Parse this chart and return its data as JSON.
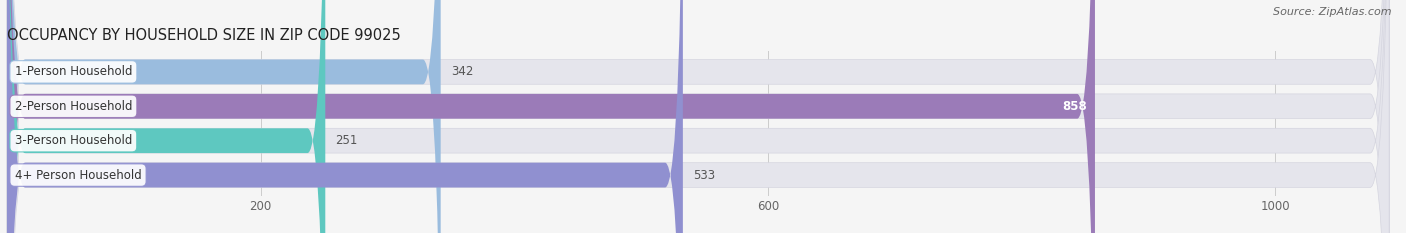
{
  "title": "OCCUPANCY BY HOUSEHOLD SIZE IN ZIP CODE 99025",
  "source": "Source: ZipAtlas.com",
  "categories": [
    "1-Person Household",
    "2-Person Household",
    "3-Person Household",
    "4+ Person Household"
  ],
  "values": [
    342,
    858,
    251,
    533
  ],
  "bar_colors": [
    "#9abcde",
    "#9b7bb8",
    "#5ec8c0",
    "#9090d0"
  ],
  "label_colors": [
    "#555555",
    "#ffffff",
    "#555555",
    "#555555"
  ],
  "xlim": [
    0,
    1090
  ],
  "xticks": [
    200,
    600,
    1000
  ],
  "background_color": "#f5f5f5",
  "bar_background_color": "#e5e5ec",
  "title_fontsize": 10.5,
  "source_fontsize": 8,
  "tick_fontsize": 8.5,
  "label_fontsize": 8.5,
  "value_fontsize": 8.5
}
